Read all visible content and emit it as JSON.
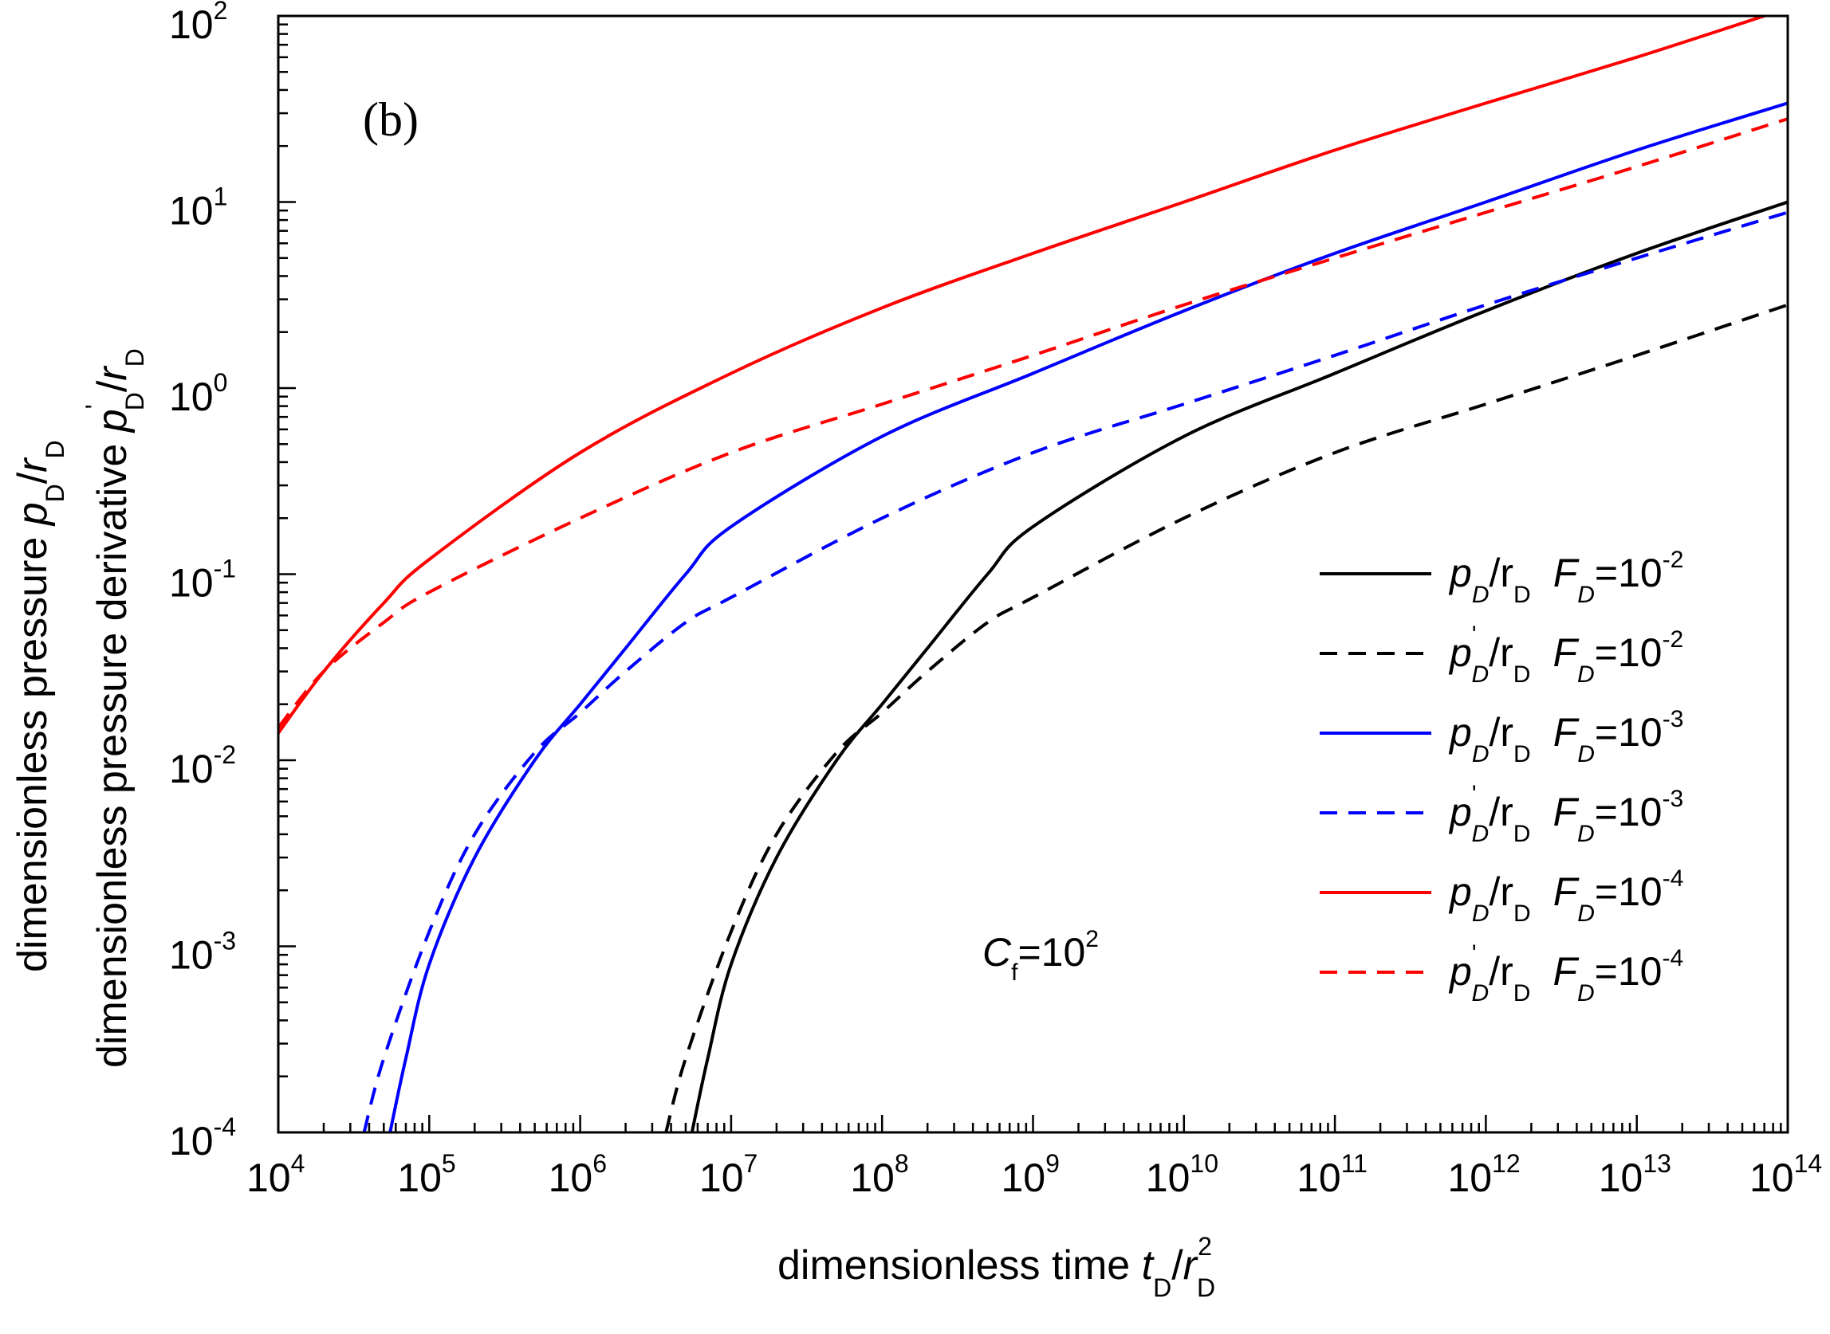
{
  "chart_data": {
    "type": "line",
    "panel_label": "(b)",
    "annotation": {
      "text": "C",
      "sub": "f",
      "eq": "=10",
      "sup": "2"
    },
    "x_axis": {
      "scale": "log",
      "range": [
        10000,
        100000000000000
      ],
      "label": {
        "text": "dimensionless time ",
        "var": "t",
        "sub1": "D",
        "slash": "/",
        "var2": "r",
        "sub2": "D",
        "sup2": "2"
      },
      "ticks": [
        {
          "value": 10000.0,
          "base": "10",
          "exp": "4"
        },
        {
          "value": 100000.0,
          "base": "10",
          "exp": "5"
        },
        {
          "value": 1000000.0,
          "base": "10",
          "exp": "6"
        },
        {
          "value": 10000000.0,
          "base": "10",
          "exp": "7"
        },
        {
          "value": 100000000.0,
          "base": "10",
          "exp": "8"
        },
        {
          "value": 1000000000.0,
          "base": "10",
          "exp": "9"
        },
        {
          "value": 10000000000.0,
          "base": "10",
          "exp": "10"
        },
        {
          "value": 100000000000.0,
          "base": "10",
          "exp": "11"
        },
        {
          "value": 1000000000000.0,
          "base": "10",
          "exp": "12"
        },
        {
          "value": 10000000000000.0,
          "base": "10",
          "exp": "13"
        },
        {
          "value": 100000000000000.0,
          "base": "10",
          "exp": "14"
        }
      ]
    },
    "y_axis": {
      "scale": "log",
      "range": [
        0.0001,
        100
      ],
      "label_line1": {
        "text": "dimensionless pressure ",
        "var": "p",
        "sub1": "D",
        "slash": "/",
        "var2": "r",
        "sub2": "D"
      },
      "label_line2": {
        "text": "dimensionless pressure derivative ",
        "var": "p",
        "prime": "'",
        "sub1": "D",
        "slash": "/",
        "var2": "r",
        "sub2": "D"
      },
      "ticks": [
        {
          "value": 0.0001,
          "base": "10",
          "exp": "-4"
        },
        {
          "value": 0.001,
          "base": "10",
          "exp": "-3"
        },
        {
          "value": 0.01,
          "base": "10",
          "exp": "-2"
        },
        {
          "value": 0.1,
          "base": "10",
          "exp": "-1"
        },
        {
          "value": 1,
          "base": "10",
          "exp": "0"
        },
        {
          "value": 10,
          "base": "10",
          "exp": "1"
        },
        {
          "value": 100,
          "base": "10",
          "exp": "2"
        }
      ]
    },
    "series": [
      {
        "name": "pD/rD FD=10^-2",
        "color": "#000000",
        "dash": false,
        "legend": {
          "p": "p",
          "prime": "",
          "sD": "D",
          "r": "/r",
          "rsub": "D",
          "F": "F",
          "Fsub": "D",
          "eq": "=10",
          "exp": "-2"
        },
        "x": [
          5500000.0,
          7000000.0,
          10000000.0,
          20000000.0,
          50000000.0,
          100000000.0,
          200000000.0,
          500000000.0,
          1000000000.0,
          10000000000.0,
          100000000000.0,
          1000000000000.0,
          10000000000000.0,
          100000000000000.0
        ],
        "y": [
          0.0001,
          0.00025,
          0.0008,
          0.003,
          0.01,
          0.02,
          0.04,
          0.1,
          0.18,
          0.55,
          1.2,
          2.6,
          5.3,
          10
        ]
      },
      {
        "name": "p'D/rD FD=10^-2",
        "color": "#000000",
        "dash": true,
        "legend": {
          "p": "p",
          "prime": "'",
          "sD": "D",
          "r": "/r",
          "rsub": "D",
          "F": "F",
          "Fsub": "D",
          "eq": "=10",
          "exp": "-2"
        },
        "x": [
          3700000.0,
          5000000.0,
          10000000.0,
          20000000.0,
          50000000.0,
          100000000.0,
          200000000.0,
          500000000.0,
          1000000000.0,
          10000000000.0,
          100000000000.0,
          1000000000000.0,
          10000000000000.0,
          100000000000000.0
        ],
        "y": [
          0.0001,
          0.00025,
          0.0012,
          0.004,
          0.011,
          0.018,
          0.03,
          0.055,
          0.075,
          0.2,
          0.45,
          0.82,
          1.5,
          2.8
        ]
      },
      {
        "name": "pD/rD FD=10^-3",
        "color": "#0000ff",
        "dash": false,
        "legend": {
          "p": "p",
          "prime": "",
          "sD": "D",
          "r": "/r",
          "rsub": "D",
          "F": "F",
          "Fsub": "D",
          "eq": "=10",
          "exp": "-3"
        },
        "x": [
          55000.0,
          70000.0,
          100000.0,
          200000.0,
          500000.0,
          1000000.0,
          2000000.0,
          5000000.0,
          10000000.0,
          100000000.0,
          1000000000.0,
          10000000000.0,
          100000000000.0,
          1000000000000.0,
          10000000000000.0,
          100000000000000.0
        ],
        "y": [
          0.0001,
          0.00025,
          0.0008,
          0.003,
          0.01,
          0.02,
          0.04,
          0.1,
          0.18,
          0.55,
          1.2,
          2.6,
          5.3,
          10,
          19,
          34
        ]
      },
      {
        "name": "p'D/rD FD=10^-3",
        "color": "#0000ff",
        "dash": true,
        "legend": {
          "p": "p",
          "prime": "'",
          "sD": "D",
          "r": "/r",
          "rsub": "D",
          "F": "F",
          "Fsub": "D",
          "eq": "=10",
          "exp": "-3"
        },
        "x": [
          37000.0,
          50000.0,
          100000.0,
          200000.0,
          500000.0,
          1000000.0,
          2000000.0,
          5000000.0,
          10000000.0,
          100000000.0,
          1000000000.0,
          10000000000.0,
          100000000000.0,
          1000000000000.0,
          10000000000000.0,
          100000000000000.0
        ],
        "y": [
          0.0001,
          0.00025,
          0.0012,
          0.004,
          0.011,
          0.018,
          0.03,
          0.055,
          0.075,
          0.2,
          0.45,
          0.82,
          1.5,
          2.8,
          5.0,
          8.8
        ]
      },
      {
        "name": "pD/rD FD=10^-4",
        "color": "#ff0000",
        "dash": false,
        "legend": {
          "p": "p",
          "prime": "",
          "sD": "D",
          "r": "/r",
          "rsub": "D",
          "F": "F",
          "Fsub": "D",
          "eq": "=10",
          "exp": "-4"
        },
        "x": [
          10000.0,
          20000.0,
          50000.0,
          100000.0,
          1000000.0,
          10000000.0,
          100000000.0,
          1000000000.0,
          10000000000.0,
          100000000000.0,
          1000000000000.0,
          10000000000000.0,
          100000000000000.0
        ],
        "y": [
          0.014,
          0.03,
          0.07,
          0.12,
          0.45,
          1.2,
          2.7,
          5.3,
          10,
          19,
          34,
          60,
          110
        ]
      },
      {
        "name": "p'D/rD FD=10^-4",
        "color": "#ff0000",
        "dash": true,
        "legend": {
          "p": "p",
          "prime": "'",
          "sD": "D",
          "r": "/r",
          "rsub": "D",
          "F": "F",
          "Fsub": "D",
          "eq": "=10",
          "exp": "-4"
        },
        "x": [
          10000.0,
          20000.0,
          50000.0,
          100000.0,
          1000000.0,
          10000000.0,
          100000000.0,
          1000000000.0,
          10000000000.0,
          100000000000.0,
          1000000000000.0,
          10000000000000.0,
          100000000000000.0
        ],
        "y": [
          0.015,
          0.03,
          0.055,
          0.08,
          0.2,
          0.45,
          0.82,
          1.5,
          2.8,
          5.0,
          8.8,
          15.5,
          28
        ]
      }
    ],
    "legend_position": "right-middle"
  }
}
